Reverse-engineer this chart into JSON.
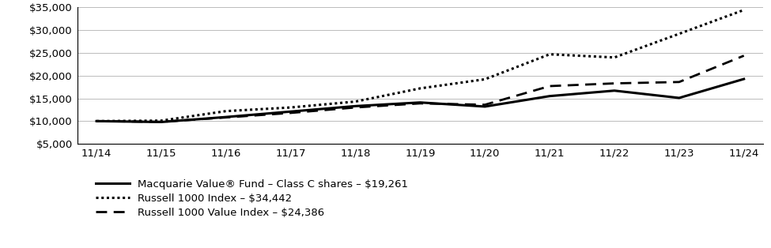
{
  "x_labels": [
    "11/14",
    "11/15",
    "11/16",
    "11/17",
    "11/18",
    "11/19",
    "11/20",
    "11/21",
    "11/22",
    "11/23",
    "11/24"
  ],
  "x_positions": [
    0,
    1,
    2,
    3,
    4,
    5,
    6,
    7,
    8,
    9,
    10
  ],
  "macquarie": [
    10000,
    9800,
    10900,
    12100,
    13300,
    14100,
    13200,
    15500,
    16700,
    15100,
    19261
  ],
  "russell1000": [
    10000,
    10100,
    12200,
    13000,
    14300,
    17200,
    19200,
    24700,
    24000,
    29200,
    34442
  ],
  "russell1000_value": [
    10000,
    9850,
    10800,
    11800,
    13000,
    13900,
    13600,
    17700,
    18300,
    18600,
    24386
  ],
  "ylim": [
    5000,
    35000
  ],
  "yticks": [
    5000,
    10000,
    15000,
    20000,
    25000,
    30000,
    35000
  ],
  "background_color": "#ffffff",
  "grid_color": "#bbbbbb",
  "spine_color": "#000000",
  "line_color": "#000000",
  "legend_labels": [
    "Macquarie Value® Fund – Class C shares – $19,261",
    "Russell 1000 Index – $34,442",
    "Russell 1000 Value Index – $24,386"
  ]
}
